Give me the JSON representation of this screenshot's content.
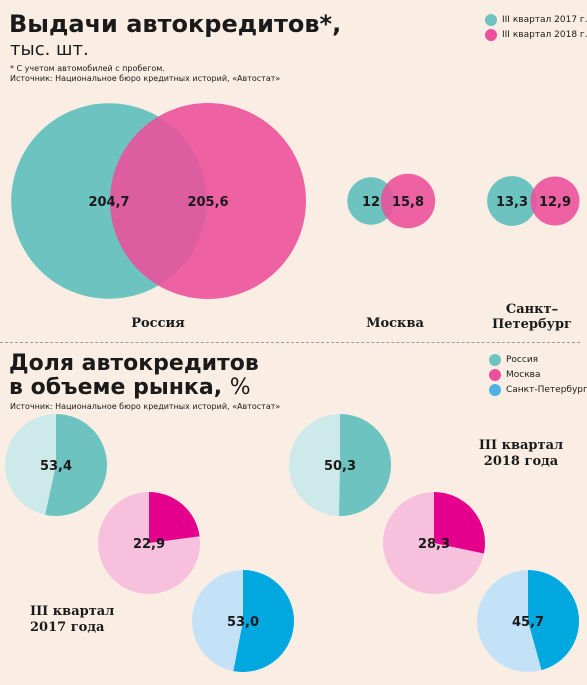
{
  "section1": {
    "title": "Выдачи автокредитов*,",
    "unit": "тыс. шт.",
    "footnote": "* С учетом автомобилей с пробегом.",
    "source": "Источник: Национальное бюро кредитных историй, «Автостат»",
    "legend": [
      {
        "label": "III квартал 2017 г.",
        "color": "#6cc3c0"
      },
      {
        "label": "III квартал 2018 г.",
        "color": "#ec4f9b"
      }
    ]
  },
  "section2": {
    "title_line1": "Доля автокредитов",
    "title_line2": "в объеме рынка,",
    "title_unit": "%",
    "source": "Источник: Национальное бюро кредитных историй, «Автостат»",
    "legend": [
      {
        "label": "Россия",
        "color": "#6cc3c0"
      },
      {
        "label": "Москва",
        "color": "#ec4f9b"
      },
      {
        "label": "Санкт-Петербург",
        "color": "#4db1e6"
      }
    ],
    "q2018_line1": "III квартал",
    "q2018_line2": "2018 года",
    "q2017_line1": "III квартал",
    "q2017_line2": "2017 года"
  },
  "colors": {
    "teal": "#6cc3c0",
    "teal_light": "#cde9ea",
    "pink": "#ec4f9b",
    "magenta": "#e4008c",
    "pink_light": "#f7c0dc",
    "blue": "#00a8e0",
    "blue_light": "#c4e2f7"
  },
  "chart_data": [
    {
      "type": "bubble",
      "series": [
        {
          "name": "III квартал 2017 г.",
          "values": [
            204.7,
            12,
            13.3
          ]
        },
        {
          "name": "III квартал 2018 г.",
          "values": [
            205.6,
            15.8,
            12.9
          ]
        }
      ],
      "categories": [
        "Россия",
        "Москва",
        "Санкт-Петербург"
      ],
      "category_labels": [
        [
          "Россия"
        ],
        [
          "Москва"
        ],
        [
          "Санкт–",
          "Петербург"
        ]
      ],
      "value_labels": [
        [
          "204,7",
          "205,6"
        ],
        [
          "12",
          "15,8"
        ],
        [
          "13,3",
          "12,9"
        ]
      ]
    },
    {
      "type": "pie",
      "period": "III квартал 2017 года",
      "slices": [
        {
          "region": "Россия",
          "value": 53.4,
          "label": "53,4"
        },
        {
          "region": "Москва",
          "value": 22.9,
          "label": "22,9"
        },
        {
          "region": "Санкт-Петербург",
          "value": 53.0,
          "label": "53,0"
        }
      ]
    },
    {
      "type": "pie",
      "period": "III квартал 2018 года",
      "slices": [
        {
          "region": "Россия",
          "value": 50.3,
          "label": "50,3"
        },
        {
          "region": "Москва",
          "value": 28.3,
          "label": "28,3"
        },
        {
          "region": "Санкт-Петербург",
          "value": 45.7,
          "label": "45,7"
        }
      ]
    }
  ]
}
